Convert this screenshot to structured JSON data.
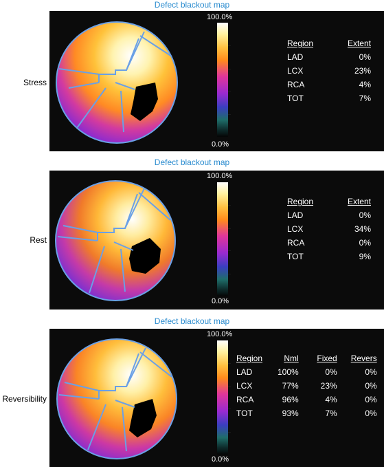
{
  "panels": [
    {
      "title": "Defect blackout map",
      "label": "Stress",
      "scale_max": "100.0%",
      "scale_min": "0.0%",
      "headers": [
        "Region",
        "Extent"
      ],
      "rows": [
        [
          "LAD",
          "0%"
        ],
        [
          "LCX",
          "23%"
        ],
        [
          "RCA",
          "4%"
        ],
        [
          "TOT",
          "7%"
        ]
      ]
    },
    {
      "title": "Defect blackout map",
      "label": "Rest",
      "scale_max": "100.0%",
      "scale_min": "0.0%",
      "headers": [
        "Region",
        "Extent"
      ],
      "rows": [
        [
          "LAD",
          "0%"
        ],
        [
          "LCX",
          "34%"
        ],
        [
          "RCA",
          "0%"
        ],
        [
          "TOT",
          "9%"
        ]
      ]
    },
    {
      "title": "Defect blackout map",
      "label": "Reversibility",
      "scale_max": "100.0%",
      "scale_min": "0.0%",
      "headers": [
        "Region",
        "Nml",
        "Fixed",
        "Revers"
      ],
      "rows": [
        [
          "LAD",
          "100%",
          "0%",
          "0%"
        ],
        [
          "LCX",
          "77%",
          "23%",
          "0%"
        ],
        [
          "RCA",
          "96%",
          "4%",
          "0%"
        ],
        [
          "TOT",
          "93%",
          "7%",
          "0%"
        ]
      ]
    }
  ],
  "colors": {
    "title": "#2b8ccf",
    "panel_bg": "#0b0b0b",
    "defect": "#000000",
    "territory_lines": "#6aa0e6"
  }
}
